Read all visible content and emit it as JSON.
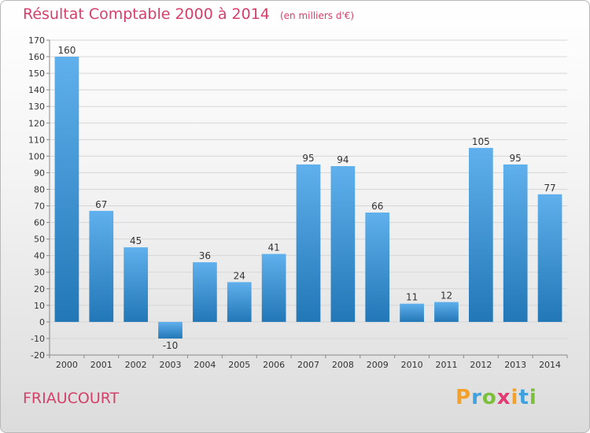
{
  "title": "Résultat Comptable 2000 à 2014",
  "subtitle": "(en milliers d'€)",
  "commune": "FRIAUCOURT",
  "logo": {
    "letters": [
      "P",
      "r",
      "o",
      "x",
      "i",
      "t",
      "i"
    ],
    "colors": [
      "#f3a12b",
      "#3fa2df",
      "#7bbf3a",
      "#e43a74",
      "#f3a12b",
      "#3fa2df",
      "#7bbf3a"
    ]
  },
  "colors": {
    "bar_top": "#5fb0ec",
    "bar_bottom": "#2277b6",
    "title": "#d4406a"
  },
  "chart_data": {
    "type": "bar",
    "title": "Résultat Comptable 2000 à 2014",
    "subtitle": "(en milliers d'€)",
    "categories": [
      "2000",
      "2001",
      "2002",
      "2003",
      "2004",
      "2005",
      "2006",
      "2007",
      "2008",
      "2009",
      "2010",
      "2011",
      "2012",
      "2013",
      "2014"
    ],
    "values": [
      160,
      67,
      45,
      -10,
      36,
      24,
      41,
      95,
      94,
      66,
      11,
      12,
      105,
      95,
      77
    ],
    "value_labels": [
      "160",
      "67",
      "45",
      "-10",
      "36",
      "24",
      "41",
      "95",
      "94",
      "66",
      "11",
      "12",
      "105",
      "95",
      "77"
    ],
    "yticks": [
      -20,
      -10,
      0,
      10,
      20,
      30,
      40,
      50,
      60,
      70,
      80,
      90,
      100,
      110,
      120,
      130,
      140,
      150,
      160,
      170
    ],
    "ytick_labels": [
      "-20",
      "-10",
      "0",
      "10",
      "20",
      "30",
      "40",
      "50",
      "60",
      "70",
      "80",
      "90",
      "100",
      "110",
      "120",
      "130",
      "140",
      "150",
      "160",
      "170"
    ],
    "ylim": [
      -20,
      170
    ],
    "grid": true
  }
}
